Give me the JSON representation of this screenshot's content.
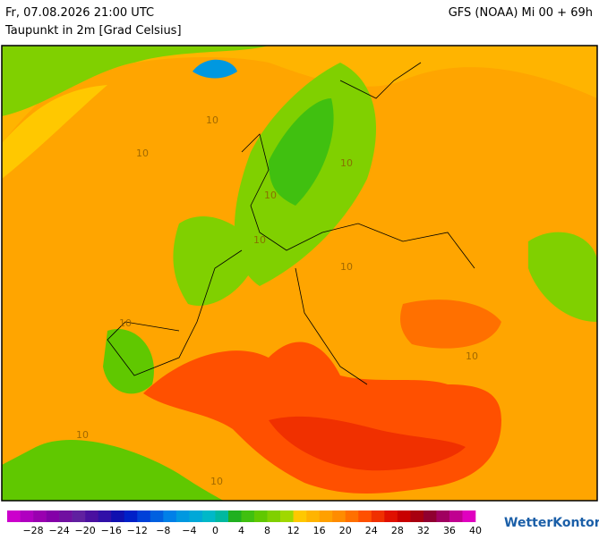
{
  "header": {
    "left": "Fr, 07.08.2026 21:00 UTC",
    "right": "GFS (NOAA) Mi 00 + 69h",
    "subtitle": "Taupunkt in 2m [Grad Celsius]"
  },
  "map": {
    "contour_labels": [
      "10",
      "10",
      "10",
      "10",
      "10",
      "10",
      "10",
      "10",
      "10",
      "10"
    ]
  },
  "legend": {
    "lim": [
      -32,
      40
    ],
    "colors": [
      "#cc00cc",
      "#b000c0",
      "#9a00b0",
      "#8400a8",
      "#7010a0",
      "#6020a0",
      "#4a10a0",
      "#3010a8",
      "#1010b0",
      "#0020c8",
      "#0040d8",
      "#0060e0",
      "#0080e8",
      "#0098e0",
      "#00a8d8",
      "#00b8c8",
      "#00b8a0",
      "#20b020",
      "#40c010",
      "#60c800",
      "#80d000",
      "#a0d800",
      "#ffc800",
      "#ffb400",
      "#ffa000",
      "#ff8c00",
      "#ff7000",
      "#ff5000",
      "#f03000",
      "#e01000",
      "#c80000",
      "#a80010",
      "#900030",
      "#a00060",
      "#c00090",
      "#e000c0"
    ],
    "ticks": [
      {
        "value": -28,
        "label": "−28"
      },
      {
        "value": -24,
        "label": "−24"
      },
      {
        "value": -20,
        "label": "−20"
      },
      {
        "value": -16,
        "label": "−16"
      },
      {
        "value": -12,
        "label": "−12"
      },
      {
        "value": -8,
        "label": "−8"
      },
      {
        "value": -4,
        "label": "−4"
      },
      0,
      4,
      8,
      12,
      16,
      20,
      24,
      28,
      32,
      36,
      40
    ]
  },
  "logo": "WetterKontor"
}
